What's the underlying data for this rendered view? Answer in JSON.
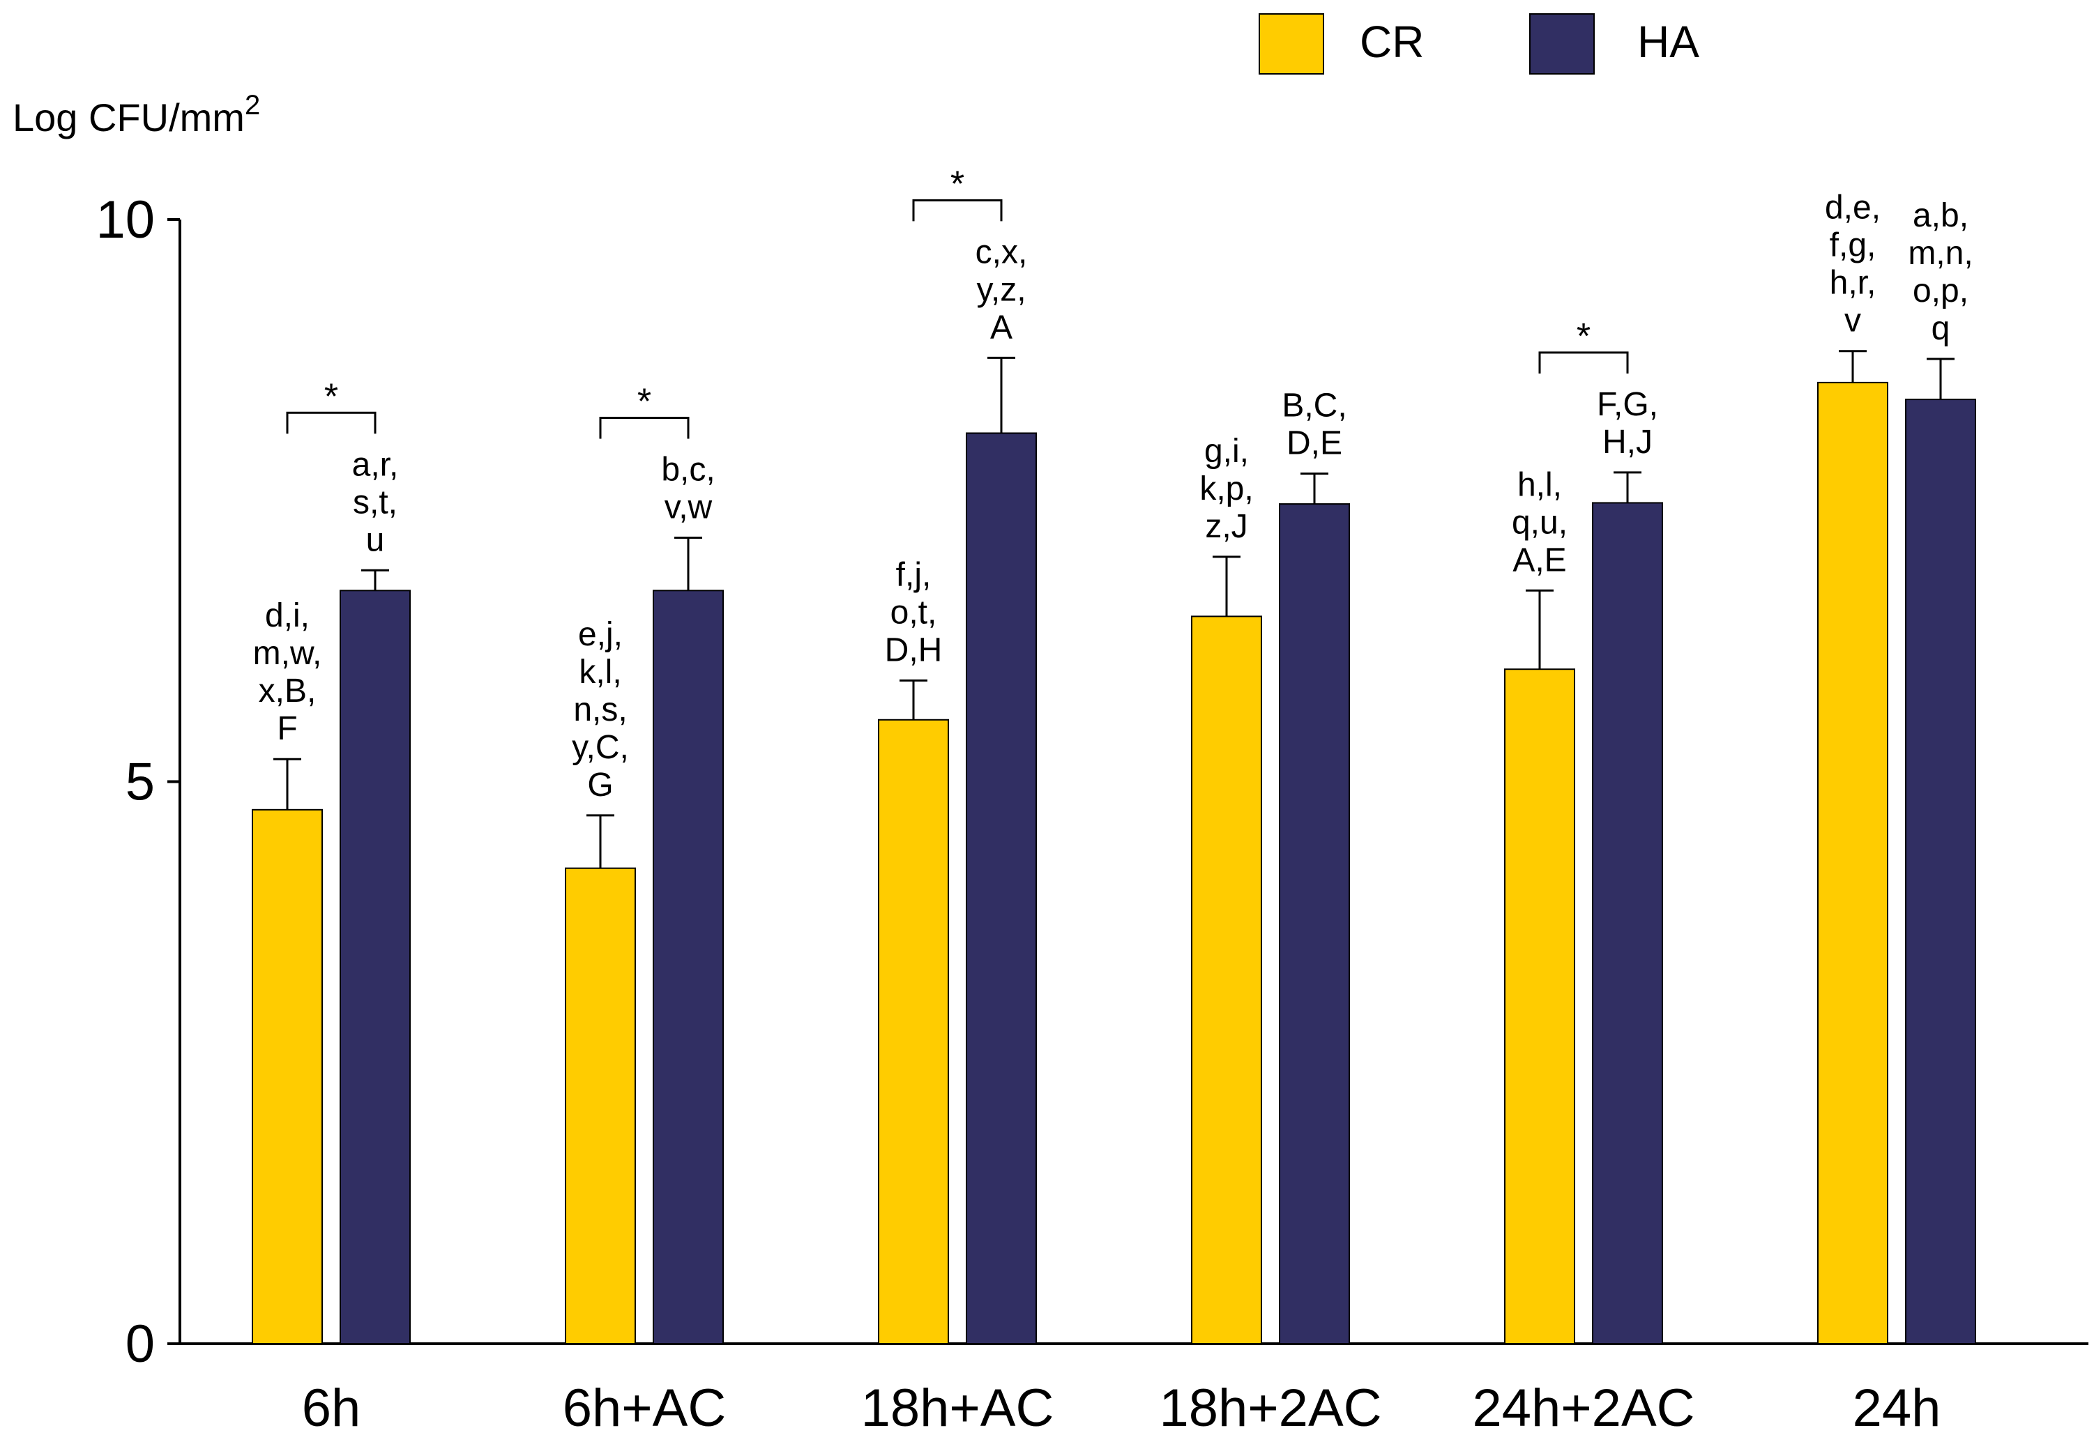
{
  "chart_data": {
    "type": "bar",
    "ylabel": "Log CFU/mm",
    "ylabel_sup": "2",
    "ylim": [
      0,
      10
    ],
    "yticks": [
      {
        "value": 0,
        "label": "0"
      },
      {
        "value": 5,
        "label": "5"
      },
      {
        "value": 10,
        "label": "10"
      }
    ],
    "categories": [
      "6h",
      "6h+AC",
      "18h+AC",
      "18h+2AC",
      "24h+2AC",
      "24h"
    ],
    "series": [
      {
        "name": "CR",
        "color": "#FFCC00",
        "values": [
          4.75,
          4.23,
          5.55,
          6.47,
          6.0,
          8.55
        ],
        "errors": [
          0.45,
          0.47,
          0.35,
          0.53,
          0.7,
          0.28
        ]
      },
      {
        "name": "HA",
        "color": "#312F63",
        "values": [
          6.7,
          6.7,
          8.1,
          7.47,
          7.48,
          8.4
        ],
        "errors": [
          0.18,
          0.47,
          0.67,
          0.27,
          0.27,
          0.36
        ]
      }
    ],
    "annotations": [
      [
        [
          "d,i,",
          "m,w,",
          "x,B,",
          "F"
        ],
        [
          "a,r,",
          "s,t,",
          "u"
        ]
      ],
      [
        [
          "e,j,",
          "k,l,",
          "n,s,",
          "y,C,",
          "G"
        ],
        [
          "b,c,",
          "v,w"
        ]
      ],
      [
        [
          "f,j,",
          "o,t,",
          "D,H"
        ],
        [
          "c,x,",
          "y,z,",
          "A"
        ]
      ],
      [
        [
          "g,i,",
          "k,p,",
          "z,J"
        ],
        [
          "B,C,",
          "D,E"
        ]
      ],
      [
        [
          "h,l,",
          "q,u,",
          "A,E"
        ],
        [
          "F,G,",
          "H,J"
        ]
      ],
      [
        [
          "d,e,",
          "f,g,",
          "h,r,",
          "v"
        ],
        [
          "a,b,",
          "m,n,",
          "o,p,",
          "q"
        ]
      ]
    ],
    "significance": [
      {
        "category": "6h",
        "label": "*"
      },
      {
        "category": "6h+AC",
        "label": "*"
      },
      {
        "category": "18h+AC",
        "label": "*"
      },
      {
        "category": "24h+2AC",
        "label": "*"
      }
    ],
    "legend_position": "top-right"
  }
}
